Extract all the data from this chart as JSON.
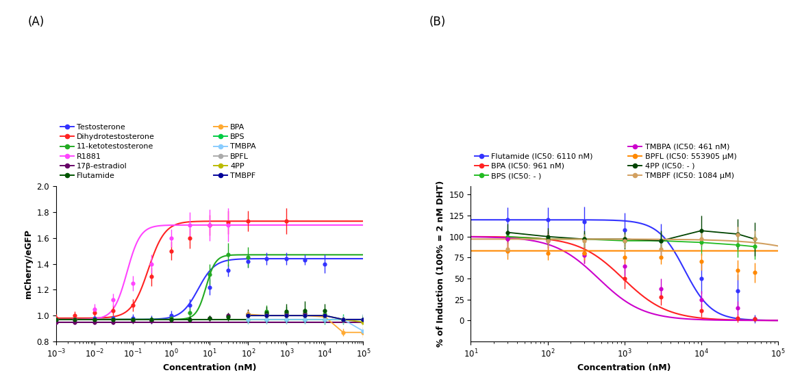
{
  "panel_A": {
    "xlabel": "Concentration (nM)",
    "ylabel": "mCherry/eGFP",
    "xlim": [
      0.001,
      100000.0
    ],
    "ylim": [
      0.8,
      2.0
    ],
    "yticks": [
      0.8,
      1.0,
      1.2,
      1.4,
      1.6,
      1.8,
      2.0
    ],
    "series": [
      {
        "label": "Testosterone",
        "color": "#3333FF",
        "x": [
          0.001,
          0.003,
          0.01,
          0.03,
          0.1,
          0.3,
          1,
          3,
          10,
          30,
          100,
          300,
          1000,
          3000,
          10000,
          100000
        ],
        "y": [
          0.97,
          0.97,
          0.98,
          0.98,
          0.98,
          0.97,
          1.0,
          1.08,
          1.22,
          1.35,
          1.42,
          1.44,
          1.44,
          1.43,
          1.4,
          0.97
        ],
        "yerr": [
          0.02,
          0.02,
          0.02,
          0.02,
          0.03,
          0.03,
          0.04,
          0.05,
          0.06,
          0.05,
          0.05,
          0.05,
          0.05,
          0.04,
          0.07,
          0.04
        ],
        "ec50": 5.0,
        "hill": 2.0,
        "bottom": 0.97,
        "top": 1.44
      },
      {
        "label": "Dihydrotestosterone",
        "color": "#FF2222",
        "x": [
          0.001,
          0.003,
          0.01,
          0.03,
          0.1,
          0.3,
          1,
          3,
          10,
          30,
          100,
          1000
        ],
        "y": [
          0.98,
          1.0,
          1.02,
          1.04,
          1.08,
          1.3,
          1.5,
          1.6,
          1.7,
          1.72,
          1.73,
          1.73
        ],
        "yerr": [
          0.03,
          0.03,
          0.05,
          0.04,
          0.05,
          0.07,
          0.07,
          0.08,
          0.08,
          0.09,
          0.08,
          0.1
        ],
        "ec50": 0.25,
        "hill": 2.0,
        "bottom": 0.98,
        "top": 1.73
      },
      {
        "label": "11-ketotestosterone",
        "color": "#22AA22",
        "x": [
          0.001,
          0.003,
          0.01,
          0.03,
          0.1,
          0.3,
          1,
          3,
          10,
          30,
          100,
          300,
          1000,
          3000,
          10000,
          100000
        ],
        "y": [
          0.97,
          0.97,
          0.97,
          0.97,
          0.97,
          0.97,
          0.98,
          1.02,
          1.32,
          1.47,
          1.45,
          1.03,
          1.02,
          1.02,
          1.01,
          0.97
        ],
        "yerr": [
          0.02,
          0.02,
          0.02,
          0.02,
          0.02,
          0.02,
          0.03,
          0.04,
          0.08,
          0.09,
          0.08,
          0.05,
          0.05,
          0.04,
          0.04,
          0.03
        ],
        "ec50": 8.0,
        "hill": 3.5,
        "bottom": 0.97,
        "top": 1.47
      },
      {
        "label": "R1881",
        "color": "#FF44FF",
        "x": [
          0.001,
          0.003,
          0.01,
          0.03,
          0.1,
          0.3,
          1,
          3,
          10,
          30,
          100
        ],
        "y": [
          0.97,
          0.97,
          1.05,
          1.12,
          1.25,
          1.4,
          1.6,
          1.7,
          1.7,
          1.7,
          1.01
        ],
        "yerr": [
          0.02,
          0.02,
          0.04,
          0.05,
          0.06,
          0.07,
          0.07,
          0.1,
          0.12,
          0.13,
          0.04
        ],
        "ec50": 0.07,
        "hill": 2.5,
        "bottom": 0.97,
        "top": 1.7
      },
      {
        "label": "17β-estradiol",
        "color": "#660066",
        "x": [
          0.001,
          0.003,
          0.01,
          0.03,
          0.1,
          0.3,
          1,
          3,
          10,
          30,
          100,
          300,
          1000,
          3000,
          10000,
          100000
        ],
        "y": [
          0.95,
          0.95,
          0.95,
          0.95,
          0.96,
          0.96,
          0.97,
          0.97,
          0.98,
          1.0,
          1.01,
          1.01,
          1.01,
          1.01,
          1.0,
          0.97
        ],
        "yerr": [
          0.02,
          0.02,
          0.02,
          0.02,
          0.02,
          0.02,
          0.02,
          0.02,
          0.02,
          0.02,
          0.02,
          0.02,
          0.02,
          0.02,
          0.02,
          0.02
        ],
        "ec50": 1000000000.0,
        "hill": 1.0,
        "bottom": 0.95,
        "top": 1.01
      },
      {
        "label": "Flutamide",
        "color": "#005500",
        "x": [
          0.001,
          0.003,
          0.01,
          0.03,
          0.1,
          0.3,
          1,
          3,
          10,
          30,
          100,
          300,
          1000,
          3000,
          10000,
          100000
        ],
        "y": [
          0.97,
          0.97,
          0.97,
          0.97,
          0.97,
          0.97,
          0.97,
          0.97,
          0.98,
          0.99,
          1.01,
          1.02,
          1.03,
          1.04,
          1.04,
          0.97
        ],
        "yerr": [
          0.02,
          0.02,
          0.02,
          0.02,
          0.02,
          0.02,
          0.02,
          0.02,
          0.02,
          0.03,
          0.04,
          0.05,
          0.06,
          0.07,
          0.05,
          0.03
        ],
        "ec50": 1000000000.0,
        "hill": 1.0,
        "bottom": 0.97,
        "top": 1.05
      },
      {
        "label": "BPA",
        "color": "#FFAA33",
        "x": [
          100,
          300,
          1000,
          3000,
          10000,
          30000,
          100000
        ],
        "y": [
          1.01,
          1.0,
          1.0,
          1.0,
          0.99,
          0.87,
          0.87
        ],
        "yerr": [
          0.03,
          0.03,
          0.03,
          0.03,
          0.03,
          0.03,
          0.04
        ],
        "flat": true
      },
      {
        "label": "BPS",
        "color": "#00CC44",
        "x": [
          100,
          300,
          1000,
          3000,
          10000,
          30000,
          100000
        ],
        "y": [
          0.97,
          0.97,
          0.97,
          0.97,
          0.97,
          0.97,
          0.97
        ],
        "yerr": [
          0.03,
          0.03,
          0.03,
          0.03,
          0.04,
          0.04,
          0.04
        ],
        "flat": true
      },
      {
        "label": "TMBPA",
        "color": "#88CCFF",
        "x": [
          100,
          300,
          1000,
          3000,
          10000,
          30000,
          100000
        ],
        "y": [
          0.97,
          0.97,
          0.97,
          0.97,
          0.97,
          0.97,
          0.88
        ],
        "yerr": [
          0.03,
          0.03,
          0.03,
          0.03,
          0.03,
          0.03,
          0.03
        ],
        "flat": true
      },
      {
        "label": "BPFL",
        "color": "#AAAAAA",
        "x": [
          100,
          300,
          1000,
          3000,
          10000,
          30000,
          100000
        ],
        "y": [
          1.0,
          1.0,
          1.0,
          1.0,
          1.0,
          0.97,
          0.97
        ],
        "yerr": [
          0.02,
          0.02,
          0.02,
          0.02,
          0.02,
          0.02,
          0.02
        ],
        "flat": true
      },
      {
        "label": "4PP",
        "color": "#BBBB00",
        "x": [
          100,
          300,
          1000,
          3000,
          10000,
          30000,
          100000
        ],
        "y": [
          1.0,
          1.0,
          1.0,
          1.0,
          1.0,
          0.97,
          0.95
        ],
        "yerr": [
          0.02,
          0.02,
          0.02,
          0.02,
          0.02,
          0.02,
          0.03
        ],
        "flat": true
      },
      {
        "label": "TMBPF",
        "color": "#000099",
        "x": [
          100,
          300,
          1000,
          3000,
          10000,
          30000,
          100000
        ],
        "y": [
          1.0,
          1.0,
          1.0,
          1.0,
          1.0,
          0.97,
          0.97
        ],
        "yerr": [
          0.02,
          0.02,
          0.02,
          0.02,
          0.02,
          0.02,
          0.02
        ],
        "flat": true
      }
    ],
    "legend_col1": [
      "Testosterone",
      "Dihydrotestosterone",
      "11-ketotestosterone",
      "R1881",
      "17β-estradiol",
      "Flutamide"
    ],
    "legend_col2": [
      "BPA",
      "BPS",
      "TMBPA",
      "BPFL",
      "4PP",
      "TMBPF"
    ]
  },
  "panel_B": {
    "xlabel": "Concentration (nM)",
    "ylabel": "% of Induction (100% = 2 nM DHT)",
    "xlim": [
      10,
      100000.0
    ],
    "ylim": [
      -25,
      160
    ],
    "yticks": [
      0,
      25,
      50,
      75,
      100,
      125,
      150
    ],
    "series": [
      {
        "label": "Flutamide (IC50: 6110 nM)",
        "color": "#3333FF",
        "x": [
          30,
          100,
          300,
          1000,
          3000,
          10000,
          30000,
          50000
        ],
        "y": [
          120,
          120,
          118,
          108,
          95,
          50,
          35,
          2
        ],
        "yerr": [
          15,
          15,
          18,
          20,
          20,
          18,
          20,
          5
        ],
        "ec50": 6110,
        "hill": 2.5,
        "bottom": 0,
        "top": 120
      },
      {
        "label": "BPA (IC50: 961 nM)",
        "color": "#FF2222",
        "x": [
          30,
          100,
          300,
          1000,
          3000,
          10000,
          30000,
          50000
        ],
        "y": [
          97,
          97,
          80,
          50,
          28,
          12,
          3,
          2
        ],
        "yerr": [
          10,
          10,
          12,
          12,
          10,
          8,
          5,
          3
        ],
        "ec50": 961,
        "hill": 1.5,
        "bottom": 0,
        "top": 100
      },
      {
        "label": "BPS (IC50: - )",
        "color": "#22BB22",
        "x": [
          30,
          100,
          300,
          1000,
          3000,
          10000,
          30000,
          50000
        ],
        "y": [
          100,
          97,
          97,
          95,
          95,
          93,
          90,
          88
        ],
        "yerr": [
          8,
          8,
          8,
          8,
          10,
          15,
          15,
          15
        ],
        "flat": true
      },
      {
        "label": "TMBPA (IC50: 461 nM)",
        "color": "#CC00CC",
        "x": [
          30,
          100,
          300,
          1000,
          3000,
          10000,
          30000
        ],
        "y": [
          97,
          95,
          78,
          65,
          38,
          25,
          15
        ],
        "yerr": [
          10,
          10,
          10,
          12,
          12,
          10,
          8
        ],
        "ec50": 461,
        "hill": 1.5,
        "bottom": 0,
        "top": 100
      },
      {
        "label": "BPFL (IC50: 553905 μM)",
        "color": "#FF8800",
        "x": [
          30,
          100,
          300,
          1000,
          3000,
          10000,
          30000,
          50000
        ],
        "y": [
          83,
          80,
          80,
          75,
          75,
          70,
          60,
          57
        ],
        "yerr": [
          10,
          8,
          8,
          8,
          8,
          10,
          12,
          12
        ],
        "ec50": 553905000,
        "hill": 1.0,
        "bottom": 0,
        "top": 83
      },
      {
        "label": "4PP (IC50: - )",
        "color": "#004400",
        "x": [
          30,
          100,
          300,
          1000,
          3000,
          10000,
          30000,
          50000
        ],
        "y": [
          105,
          100,
          97,
          97,
          95,
          107,
          103,
          97
        ],
        "yerr": [
          10,
          10,
          10,
          12,
          12,
          18,
          18,
          20
        ],
        "flat": true
      },
      {
        "label": "TMBPF (IC50: 1084 μM)",
        "color": "#D2A060",
        "x": [
          30,
          100,
          300,
          1000,
          3000,
          10000,
          30000,
          50000
        ],
        "y": [
          85,
          95,
          95,
          95,
          85,
          97,
          102,
          97
        ],
        "yerr": [
          8,
          8,
          8,
          8,
          8,
          8,
          10,
          10
        ],
        "ec50": 1084000,
        "hill": 1.0,
        "bottom": 0,
        "top": 97
      }
    ],
    "legend_left": [
      "Flutamide (IC50: 6110 nM)",
      "BPA (IC50: 961 nM)",
      "BPS (IC50: - )"
    ],
    "legend_right": [
      "TMBPA (IC50: 461 nM)",
      "BPFL (IC50: 553905 μM)",
      "4PP (IC50: - )",
      "TMBPF (IC50: 1084 μM)"
    ]
  }
}
